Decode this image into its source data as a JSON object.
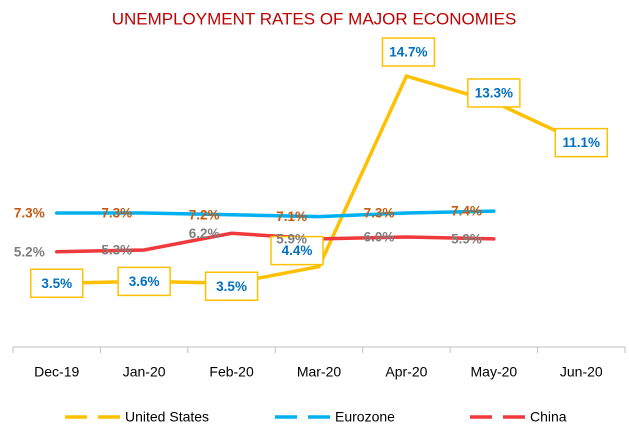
{
  "chart_data": {
    "type": "line",
    "title": "UNEMPLOYMENT RATES OF MAJOR ECONOMIES",
    "categories": [
      "Dec-19",
      "Jan-20",
      "Feb-20",
      "Mar-20",
      "Apr-20",
      "May-20",
      "Jun-20"
    ],
    "series": [
      {
        "name": "United States",
        "color": "#FFC000",
        "label_color": "#0070C0",
        "values": [
          3.5,
          3.6,
          3.5,
          4.4,
          14.7,
          13.3,
          11.1
        ],
        "value_labels": [
          "3.5%",
          "3.6%",
          "3.5%",
          "4.4%",
          "14.7%",
          "13.3%",
          "11.1%"
        ]
      },
      {
        "name": "Eurozone",
        "color": "#00B0F0",
        "label_color": "#C55A11",
        "values": [
          7.3,
          7.3,
          7.2,
          7.1,
          7.3,
          7.4,
          null
        ],
        "value_labels": [
          "7.3%",
          "7.3%",
          "7.2%",
          "7.1%",
          "7.3%",
          "7.4%",
          null
        ]
      },
      {
        "name": "China",
        "color": "#F0393C",
        "label_color": "#7F7F7F",
        "values": [
          5.2,
          5.3,
          6.2,
          5.9,
          6.0,
          5.9,
          null
        ],
        "value_labels": [
          "5.2%",
          "5.3%",
          "6.2%",
          "5.9%",
          "6.0%",
          "5.9%",
          null
        ]
      }
    ],
    "grid": false,
    "legend": "bottom"
  }
}
